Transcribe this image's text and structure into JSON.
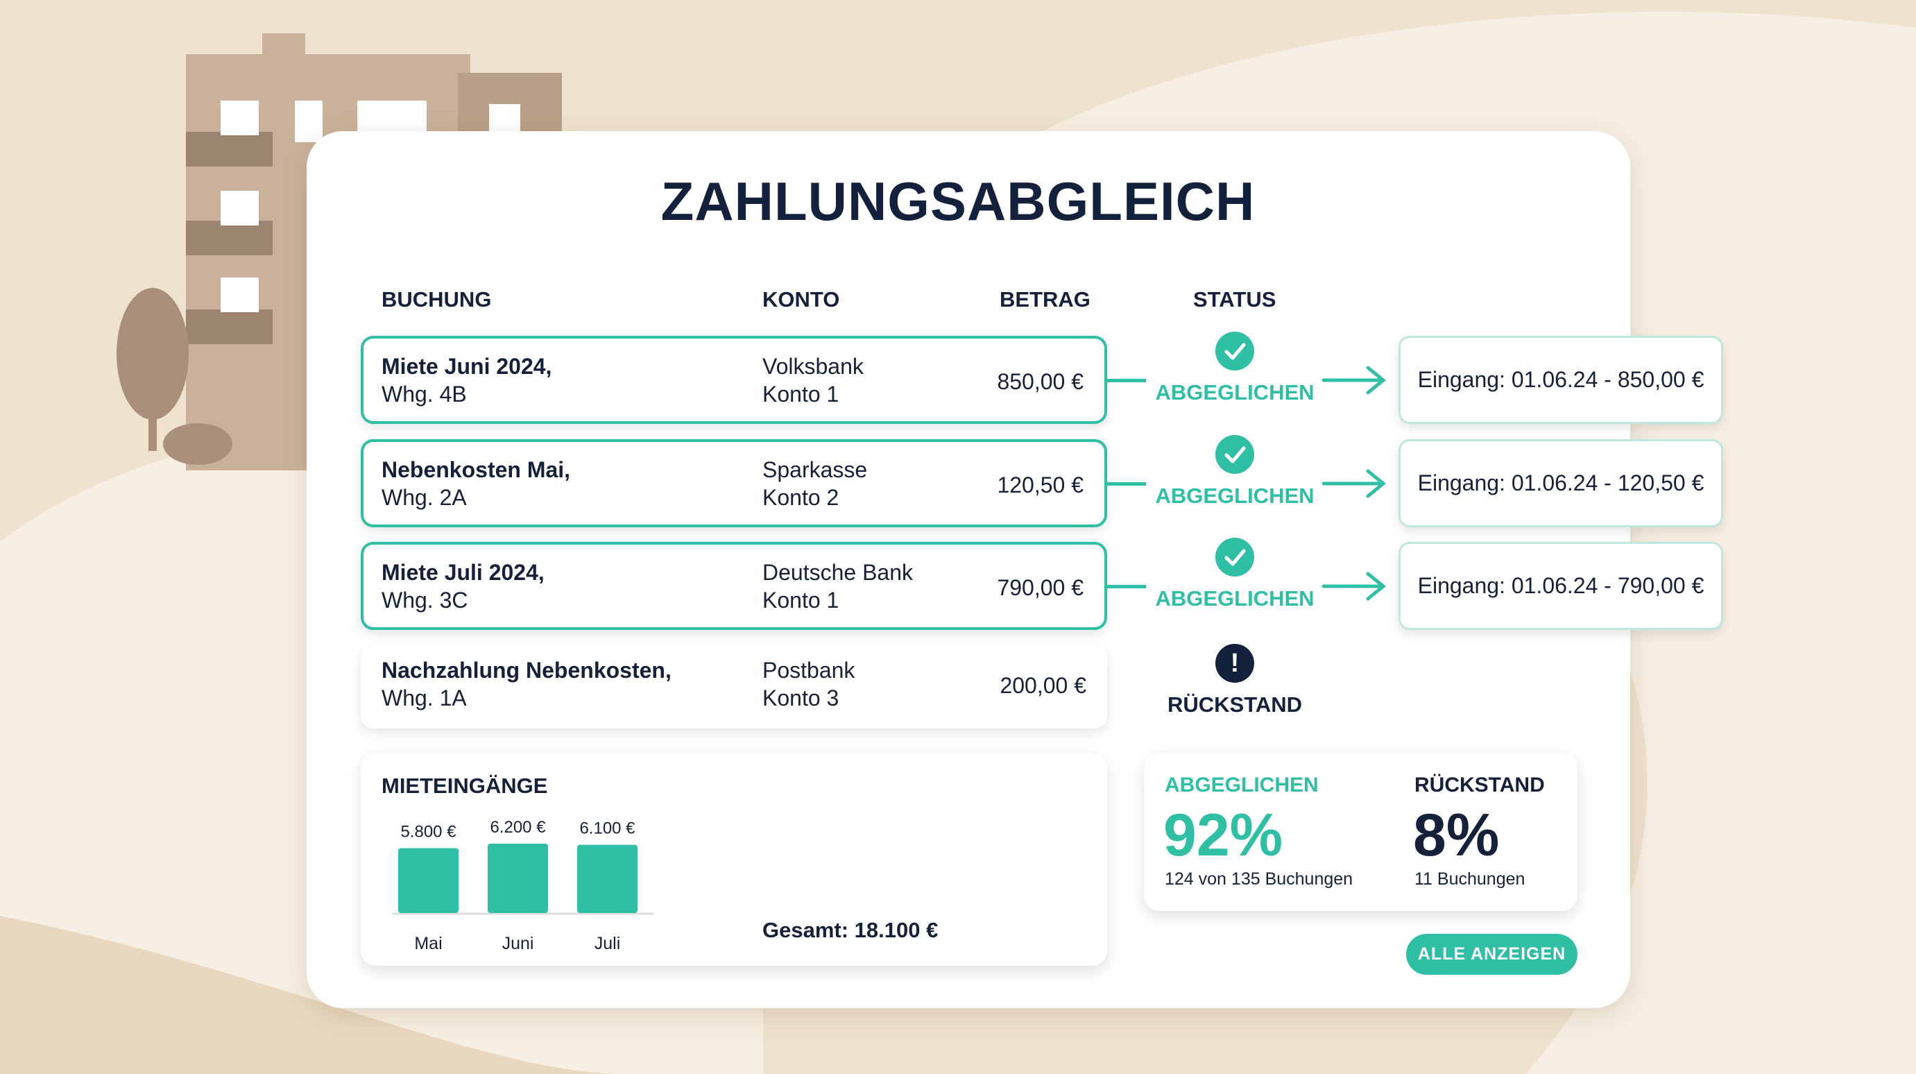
{
  "title": "ZAHLUNGSABGLEICH",
  "headers": {
    "buchung": "BUCHUNG",
    "konto": "KONTO",
    "betrag": "BETRAG",
    "status": "STATUS"
  },
  "colors": {
    "accent": "#2fbfa5",
    "dark": "#14213d",
    "background": "#efe2cf"
  },
  "rows": [
    {
      "buchung1": "Miete Juni 2024,",
      "buchung2": "Whg. 4B",
      "konto1": "Volksbank",
      "konto2": "Konto 1",
      "betrag": "850,00 €",
      "status": "ABGEGLICHEN",
      "status_icon": "check-circle-icon",
      "eingang": "Eingang: 01.06.24 - 850,00 €"
    },
    {
      "buchung1": "Nebenkosten Mai,",
      "buchung2": "Whg. 2A",
      "konto1": "Sparkasse",
      "konto2": "Konto 2",
      "betrag": "120,50 €",
      "status": "ABGEGLICHEN",
      "status_icon": "check-circle-icon",
      "eingang": "Eingang: 01.06.24 - 120,50 €"
    },
    {
      "buchung1": "Miete Juli 2024,",
      "buchung2": "Whg. 3C",
      "konto1": "Deutsche Bank",
      "konto2": "Konto 1",
      "betrag": "790,00 €",
      "status": "ABGEGLICHEN",
      "status_icon": "check-circle-icon",
      "eingang": "Eingang: 01.06.24 - 790,00 €"
    },
    {
      "buchung1": "Nachzahlung Nebenkosten,",
      "buchung2": "Whg. 1A",
      "konto1": "Postbank",
      "konto2": "Konto 3",
      "betrag": "200,00 €",
      "status": "RÜCKSTAND",
      "status_icon": "exclamation-circle-icon"
    }
  ],
  "mieteingaenge": {
    "title": "MIETEINGÄNGE",
    "total": "Gesamt: 18.100 €"
  },
  "chart_data": {
    "type": "bar",
    "categories": [
      "Mai",
      "Juni",
      "Juli"
    ],
    "values": [
      5800,
      6200,
      6100
    ],
    "labels": [
      "5.800 €",
      "6.200 €",
      "6.100 €"
    ]
  },
  "stats": {
    "ok_label": "ABGEGLICHEN",
    "ok_pct": "92%",
    "ok_sub": "124 von 135 Buchungen",
    "due_label": "RÜCKSTAND",
    "due_pct": "8%",
    "due_sub": "11 Buchungen"
  },
  "button": "ALLE ANZEIGEN"
}
